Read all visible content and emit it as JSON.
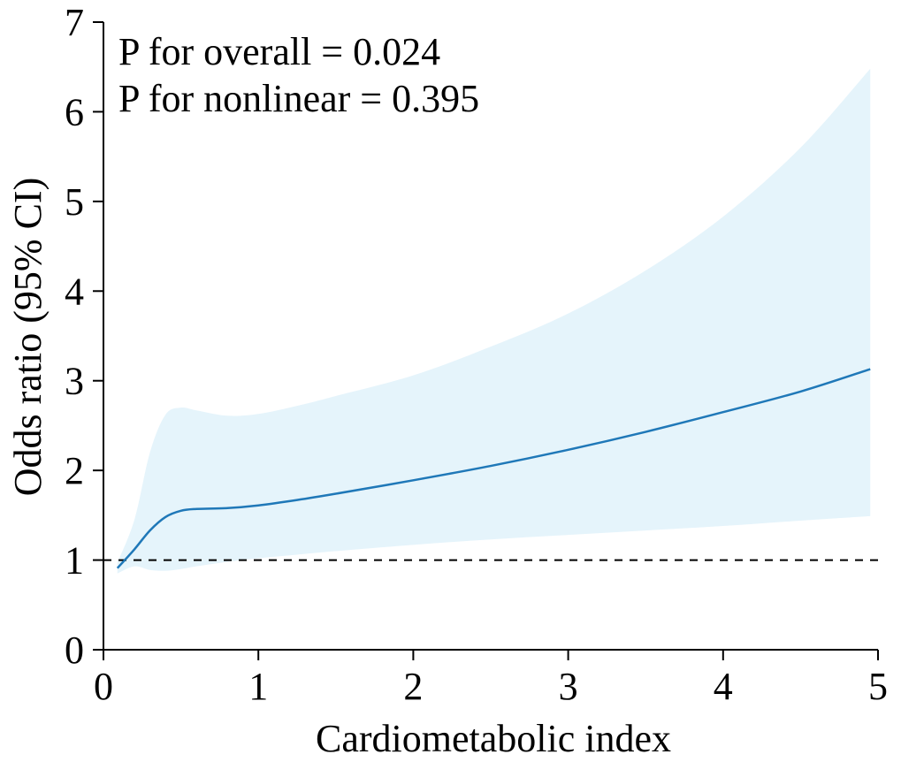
{
  "chart_data": {
    "type": "line",
    "title": "",
    "xlabel": "Cardiometabolic  index",
    "ylabel": "Odds ratio (95% CI)",
    "xlim": [
      0,
      5
    ],
    "ylim": [
      0,
      7
    ],
    "xticks": [
      0,
      1,
      2,
      3,
      4,
      5
    ],
    "yticks": [
      0,
      1,
      2,
      3,
      4,
      5,
      6,
      7
    ],
    "grid": false,
    "annotations": [
      "P for overall = 0.024",
      "P for nonlinear = 0.395"
    ],
    "reference_line": {
      "y": 1,
      "style": "dashed"
    },
    "colors": {
      "line": "#1f78b8",
      "band": "#e5f4fb",
      "axis": "#000000",
      "reference": "#000000"
    },
    "series": [
      {
        "name": "Odds ratio",
        "x": [
          0.09,
          0.2,
          0.3,
          0.4,
          0.5,
          0.6,
          0.8,
          1.0,
          1.25,
          1.5,
          2.0,
          2.5,
          3.0,
          3.5,
          4.0,
          4.5,
          4.95
        ],
        "y": [
          0.91,
          1.12,
          1.33,
          1.48,
          1.55,
          1.57,
          1.58,
          1.61,
          1.67,
          1.74,
          1.89,
          2.05,
          2.23,
          2.43,
          2.65,
          2.88,
          3.13
        ]
      },
      {
        "name": "95% CI lower",
        "x": [
          0.09,
          0.2,
          0.3,
          0.4,
          0.5,
          0.6,
          0.8,
          1.0,
          1.25,
          1.5,
          2.0,
          2.5,
          3.0,
          3.5,
          4.0,
          4.5,
          4.95
        ],
        "y": [
          0.85,
          0.93,
          0.89,
          0.88,
          0.9,
          0.93,
          0.98,
          1.02,
          1.06,
          1.1,
          1.17,
          1.23,
          1.28,
          1.33,
          1.38,
          1.44,
          1.49
        ]
      },
      {
        "name": "95% CI upper",
        "x": [
          0.09,
          0.2,
          0.3,
          0.4,
          0.5,
          0.6,
          0.8,
          1.0,
          1.25,
          1.5,
          2.0,
          2.5,
          3.0,
          3.5,
          4.0,
          4.5,
          4.95
        ],
        "y": [
          0.97,
          1.45,
          2.2,
          2.62,
          2.7,
          2.67,
          2.61,
          2.63,
          2.72,
          2.83,
          3.06,
          3.38,
          3.75,
          4.23,
          4.83,
          5.6,
          6.48
        ]
      }
    ]
  }
}
